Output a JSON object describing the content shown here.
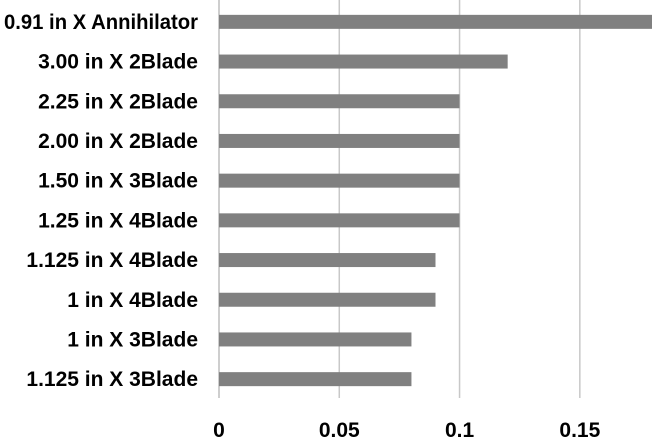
{
  "chart_data": {
    "type": "bar",
    "orientation": "horizontal",
    "title": "",
    "xlabel": "",
    "ylabel": "",
    "categories": [
      "0.91 in X Annihilator",
      "3.00 in X 2Blade",
      "2.25 in X 2Blade",
      "2.00 in X 2Blade",
      "1.50 in X 3Blade",
      "1.25 in X 4Blade",
      "1.125 in X 4Blade",
      "1 in X 4Blade",
      "1 in X 3Blade",
      "1.125 in X 3Blade"
    ],
    "values": [
      0.18,
      0.12,
      0.1,
      0.1,
      0.1,
      0.1,
      0.09,
      0.09,
      0.08,
      0.08
    ],
    "xlim": [
      0,
      0.18
    ],
    "ticks": [
      0,
      0.05,
      0.1,
      0.15
    ],
    "tick_labels": [
      "0",
      "0.05",
      "0.1",
      "0.15"
    ],
    "grid": true,
    "legend": "none",
    "colors": {
      "bar": "#808080",
      "grid": "#c8c8c8",
      "text": "#000000"
    }
  }
}
